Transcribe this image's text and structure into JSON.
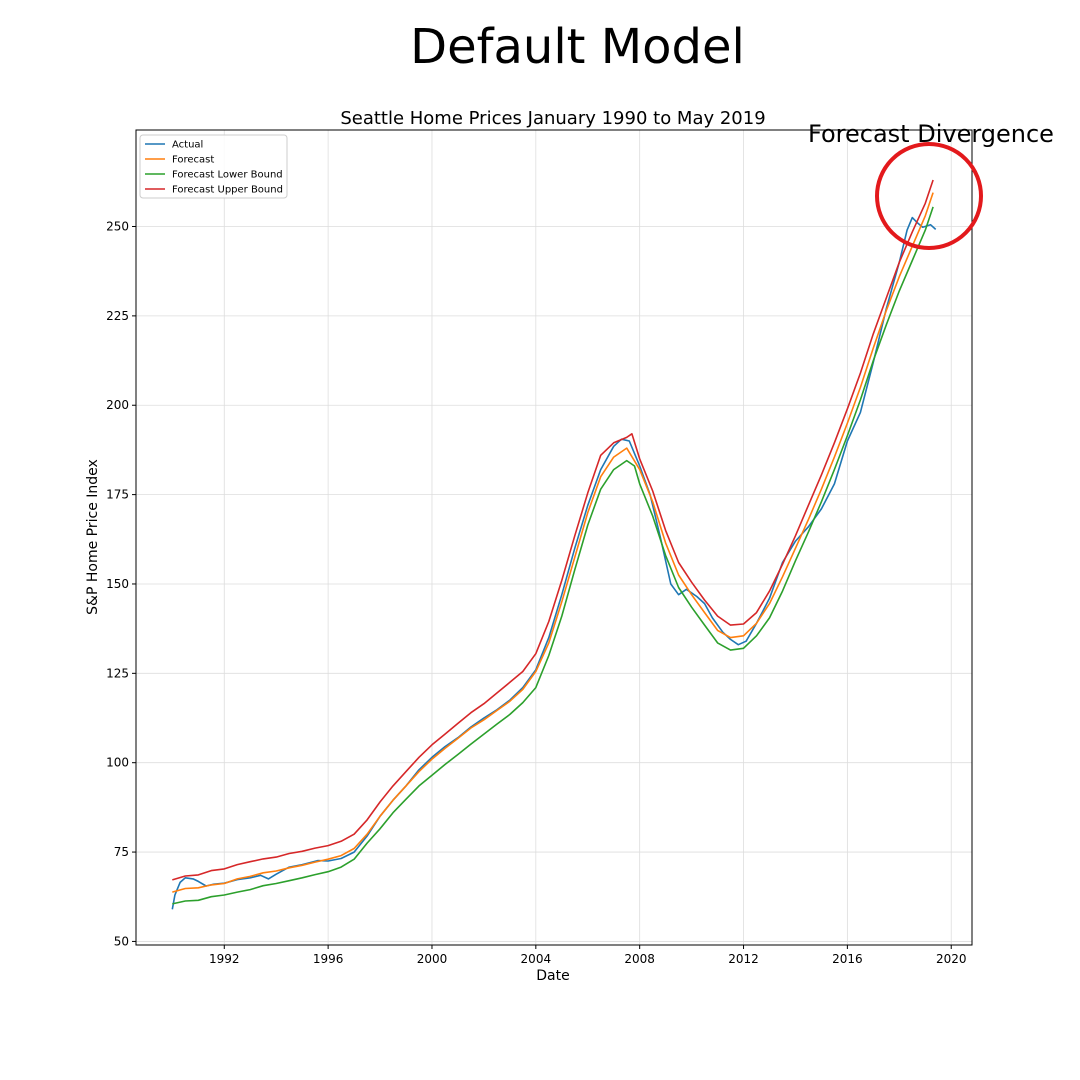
{
  "suptitle": "Default Model",
  "annotation": {
    "text": "Forecast Divergence",
    "circle_color": "#e3191c"
  },
  "chart_data": {
    "type": "line",
    "title": "Seattle Home Prices January 1990 to May 2019",
    "xlabel": "Date",
    "ylabel": "S&P Home Price Index",
    "xlim": [
      1988.6,
      2020.8
    ],
    "ylim": [
      49,
      277
    ],
    "xticks": [
      {
        "value": 1992,
        "label": "1992"
      },
      {
        "value": 1996,
        "label": "1996"
      },
      {
        "value": 2000,
        "label": "2000"
      },
      {
        "value": 2004,
        "label": "2004"
      },
      {
        "value": 2008,
        "label": "2008"
      },
      {
        "value": 2012,
        "label": "2012"
      },
      {
        "value": 2016,
        "label": "2016"
      },
      {
        "value": 2020,
        "label": "2020"
      }
    ],
    "yticks": [
      {
        "value": 50,
        "label": "50"
      },
      {
        "value": 75,
        "label": "75"
      },
      {
        "value": 100,
        "label": "100"
      },
      {
        "value": 125,
        "label": "125"
      },
      {
        "value": 150,
        "label": "150"
      },
      {
        "value": 175,
        "label": "175"
      },
      {
        "value": 200,
        "label": "200"
      },
      {
        "value": 225,
        "label": "225"
      },
      {
        "value": 250,
        "label": "250"
      }
    ],
    "grid": true,
    "legend": "top-left",
    "series": [
      {
        "name": "Actual",
        "color": "#1f77b4",
        "points": [
          [
            1990.0,
            59.0
          ],
          [
            1990.1,
            63.0
          ],
          [
            1990.3,
            66.5
          ],
          [
            1990.5,
            67.8
          ],
          [
            1990.8,
            67.5
          ],
          [
            1991.0,
            66.8
          ],
          [
            1991.3,
            65.5
          ],
          [
            1991.6,
            66.0
          ],
          [
            1992.0,
            66.3
          ],
          [
            1992.5,
            67.3
          ],
          [
            1993.0,
            67.8
          ],
          [
            1993.4,
            68.5
          ],
          [
            1993.7,
            67.5
          ],
          [
            1994.0,
            68.8
          ],
          [
            1994.5,
            70.8
          ],
          [
            1995.0,
            71.5
          ],
          [
            1995.6,
            72.6
          ],
          [
            1996.0,
            72.5
          ],
          [
            1996.5,
            73.2
          ],
          [
            1997.0,
            75.0
          ],
          [
            1997.5,
            79.5
          ],
          [
            1998.0,
            85.0
          ],
          [
            1998.5,
            89.5
          ],
          [
            1999.0,
            93.5
          ],
          [
            1999.5,
            98.0
          ],
          [
            2000.0,
            101.5
          ],
          [
            2000.5,
            104.5
          ],
          [
            2001.0,
            107.0
          ],
          [
            2001.5,
            110.0
          ],
          [
            2002.0,
            112.5
          ],
          [
            2002.5,
            114.8
          ],
          [
            2003.0,
            117.5
          ],
          [
            2003.5,
            121.0
          ],
          [
            2004.0,
            126.0
          ],
          [
            2004.5,
            135.0
          ],
          [
            2005.0,
            147.0
          ],
          [
            2005.5,
            160.0
          ],
          [
            2006.0,
            172.0
          ],
          [
            2006.5,
            182.0
          ],
          [
            2007.0,
            188.5
          ],
          [
            2007.3,
            190.5
          ],
          [
            2007.6,
            190.0
          ],
          [
            2008.0,
            183.0
          ],
          [
            2008.4,
            175.0
          ],
          [
            2008.8,
            163.0
          ],
          [
            2009.2,
            150.0
          ],
          [
            2009.5,
            147.0
          ],
          [
            2009.8,
            148.5
          ],
          [
            2010.2,
            146.5
          ],
          [
            2010.5,
            144.5
          ],
          [
            2010.8,
            140.5
          ],
          [
            2011.2,
            136.5
          ],
          [
            2011.5,
            134.5
          ],
          [
            2011.8,
            133.0
          ],
          [
            2012.1,
            134.0
          ],
          [
            2012.5,
            139.0
          ],
          [
            2013.0,
            146.0
          ],
          [
            2013.5,
            156.0
          ],
          [
            2014.0,
            162.0
          ],
          [
            2014.5,
            166.0
          ],
          [
            2015.0,
            171.0
          ],
          [
            2015.5,
            178.0
          ],
          [
            2016.0,
            190.0
          ],
          [
            2016.5,
            198.0
          ],
          [
            2017.0,
            212.0
          ],
          [
            2017.5,
            227.0
          ],
          [
            2018.0,
            240.0
          ],
          [
            2018.3,
            249.0
          ],
          [
            2018.5,
            252.5
          ],
          [
            2018.7,
            251.0
          ],
          [
            2018.9,
            249.8
          ],
          [
            2019.2,
            250.5
          ],
          [
            2019.4,
            249.2
          ]
        ]
      },
      {
        "name": "Forecast",
        "color": "#ff7f0e",
        "points": [
          [
            1990.0,
            63.8
          ],
          [
            1990.5,
            64.8
          ],
          [
            1991.0,
            65.0
          ],
          [
            1991.5,
            65.8
          ],
          [
            1992.0,
            66.2
          ],
          [
            1992.5,
            67.5
          ],
          [
            1993.0,
            68.2
          ],
          [
            1993.5,
            69.2
          ],
          [
            1994.0,
            69.7
          ],
          [
            1994.5,
            70.6
          ],
          [
            1995.0,
            71.3
          ],
          [
            1995.5,
            72.2
          ],
          [
            1996.0,
            73.0
          ],
          [
            1996.5,
            74.0
          ],
          [
            1997.0,
            76.0
          ],
          [
            1997.5,
            80.0
          ],
          [
            1998.0,
            85.0
          ],
          [
            1998.5,
            89.5
          ],
          [
            1999.0,
            93.5
          ],
          [
            1999.5,
            97.5
          ],
          [
            2000.0,
            101.0
          ],
          [
            2000.5,
            104.0
          ],
          [
            2001.0,
            106.8
          ],
          [
            2001.5,
            109.7
          ],
          [
            2002.0,
            112.0
          ],
          [
            2002.5,
            114.6
          ],
          [
            2003.0,
            117.2
          ],
          [
            2003.5,
            120.5
          ],
          [
            2004.0,
            125.5
          ],
          [
            2004.5,
            133.5
          ],
          [
            2005.0,
            145.0
          ],
          [
            2005.5,
            157.5
          ],
          [
            2006.0,
            170.0
          ],
          [
            2006.5,
            180.0
          ],
          [
            2007.0,
            185.5
          ],
          [
            2007.5,
            188.0
          ],
          [
            2008.0,
            182.0
          ],
          [
            2008.5,
            173.0
          ],
          [
            2009.0,
            161.5
          ],
          [
            2009.5,
            152.5
          ],
          [
            2010.0,
            147.0
          ],
          [
            2010.5,
            142.0
          ],
          [
            2011.0,
            137.0
          ],
          [
            2011.5,
            135.0
          ],
          [
            2012.0,
            135.5
          ],
          [
            2012.5,
            139.0
          ],
          [
            2013.0,
            144.5
          ],
          [
            2013.5,
            152.0
          ],
          [
            2014.0,
            160.0
          ],
          [
            2014.5,
            168.0
          ],
          [
            2015.0,
            176.5
          ],
          [
            2015.5,
            185.5
          ],
          [
            2016.0,
            195.0
          ],
          [
            2016.5,
            205.0
          ],
          [
            2017.0,
            216.0
          ],
          [
            2017.5,
            226.5
          ],
          [
            2018.0,
            236.0
          ],
          [
            2018.5,
            244.5
          ],
          [
            2019.0,
            253.0
          ],
          [
            2019.3,
            259.5
          ]
        ]
      },
      {
        "name": "Forecast Lower Bound",
        "color": "#2ca02c",
        "points": [
          [
            1990.0,
            60.5
          ],
          [
            1990.5,
            61.3
          ],
          [
            1991.0,
            61.5
          ],
          [
            1991.5,
            62.5
          ],
          [
            1992.0,
            63.0
          ],
          [
            1992.5,
            63.8
          ],
          [
            1993.0,
            64.5
          ],
          [
            1993.5,
            65.6
          ],
          [
            1994.0,
            66.2
          ],
          [
            1994.5,
            67.0
          ],
          [
            1995.0,
            67.8
          ],
          [
            1995.5,
            68.7
          ],
          [
            1996.0,
            69.5
          ],
          [
            1996.5,
            70.8
          ],
          [
            1997.0,
            73.0
          ],
          [
            1997.5,
            77.5
          ],
          [
            1998.0,
            81.5
          ],
          [
            1998.5,
            86.0
          ],
          [
            1999.0,
            89.8
          ],
          [
            1999.5,
            93.5
          ],
          [
            2000.0,
            96.5
          ],
          [
            2000.5,
            99.5
          ],
          [
            2001.0,
            102.3
          ],
          [
            2001.5,
            105.2
          ],
          [
            2002.0,
            108.0
          ],
          [
            2002.5,
            110.8
          ],
          [
            2003.0,
            113.5
          ],
          [
            2003.5,
            116.8
          ],
          [
            2004.0,
            121.0
          ],
          [
            2004.5,
            130.0
          ],
          [
            2005.0,
            141.0
          ],
          [
            2005.5,
            154.0
          ],
          [
            2006.0,
            166.5
          ],
          [
            2006.5,
            176.5
          ],
          [
            2007.0,
            182.0
          ],
          [
            2007.5,
            184.5
          ],
          [
            2007.8,
            183.0
          ],
          [
            2008.0,
            178.0
          ],
          [
            2008.5,
            169.0
          ],
          [
            2009.0,
            158.0
          ],
          [
            2009.5,
            149.0
          ],
          [
            2010.0,
            143.5
          ],
          [
            2010.5,
            138.5
          ],
          [
            2011.0,
            133.5
          ],
          [
            2011.5,
            131.5
          ],
          [
            2012.0,
            132.0
          ],
          [
            2012.5,
            135.5
          ],
          [
            2013.0,
            140.5
          ],
          [
            2013.5,
            148.0
          ],
          [
            2014.0,
            156.5
          ],
          [
            2014.5,
            164.5
          ],
          [
            2015.0,
            173.0
          ],
          [
            2015.5,
            182.0
          ],
          [
            2016.0,
            191.5
          ],
          [
            2016.5,
            201.5
          ],
          [
            2017.0,
            212.5
          ],
          [
            2017.5,
            222.5
          ],
          [
            2018.0,
            232.0
          ],
          [
            2018.5,
            240.5
          ],
          [
            2019.0,
            249.0
          ],
          [
            2019.3,
            255.5
          ]
        ]
      },
      {
        "name": "Forecast Upper Bound",
        "color": "#d62728",
        "points": [
          [
            1990.0,
            67.2
          ],
          [
            1990.5,
            68.3
          ],
          [
            1991.0,
            68.6
          ],
          [
            1991.5,
            69.8
          ],
          [
            1992.0,
            70.3
          ],
          [
            1992.5,
            71.5
          ],
          [
            1993.0,
            72.3
          ],
          [
            1993.5,
            73.1
          ],
          [
            1994.0,
            73.6
          ],
          [
            1994.5,
            74.6
          ],
          [
            1995.0,
            75.2
          ],
          [
            1995.5,
            76.1
          ],
          [
            1996.0,
            76.8
          ],
          [
            1996.5,
            78.0
          ],
          [
            1997.0,
            80.0
          ],
          [
            1997.5,
            84.0
          ],
          [
            1998.0,
            89.0
          ],
          [
            1998.5,
            93.5
          ],
          [
            1999.0,
            97.5
          ],
          [
            1999.5,
            101.5
          ],
          [
            2000.0,
            105.0
          ],
          [
            2000.5,
            108.0
          ],
          [
            2001.0,
            111.0
          ],
          [
            2001.5,
            114.0
          ],
          [
            2002.0,
            116.5
          ],
          [
            2002.5,
            119.5
          ],
          [
            2003.0,
            122.5
          ],
          [
            2003.5,
            125.5
          ],
          [
            2004.0,
            130.5
          ],
          [
            2004.5,
            139.5
          ],
          [
            2005.0,
            151.0
          ],
          [
            2005.5,
            163.5
          ],
          [
            2006.0,
            175.5
          ],
          [
            2006.5,
            186.0
          ],
          [
            2007.0,
            189.5
          ],
          [
            2007.5,
            191.0
          ],
          [
            2007.7,
            192.0
          ],
          [
            2008.0,
            185.0
          ],
          [
            2008.5,
            176.0
          ],
          [
            2009.0,
            165.0
          ],
          [
            2009.5,
            156.0
          ],
          [
            2010.0,
            150.5
          ],
          [
            2010.5,
            145.5
          ],
          [
            2011.0,
            141.0
          ],
          [
            2011.5,
            138.5
          ],
          [
            2012.0,
            138.8
          ],
          [
            2012.5,
            142.0
          ],
          [
            2013.0,
            148.0
          ],
          [
            2013.5,
            155.5
          ],
          [
            2014.0,
            163.5
          ],
          [
            2014.5,
            172.0
          ],
          [
            2015.0,
            180.5
          ],
          [
            2015.5,
            189.5
          ],
          [
            2016.0,
            199.0
          ],
          [
            2016.5,
            209.0
          ],
          [
            2017.0,
            220.0
          ],
          [
            2017.5,
            230.0
          ],
          [
            2018.0,
            240.0
          ],
          [
            2018.5,
            248.5
          ],
          [
            2019.0,
            256.5
          ],
          [
            2019.3,
            263.0
          ]
        ]
      }
    ]
  }
}
